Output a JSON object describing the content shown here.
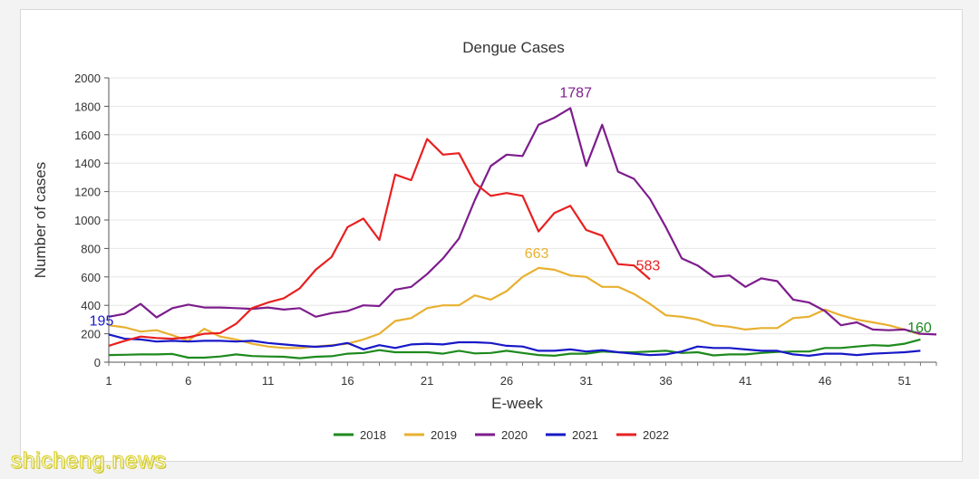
{
  "chart_data": {
    "type": "line",
    "title": "Dengue Cases",
    "xlabel": "E-week",
    "ylabel": "Number of cases",
    "ylim": [
      0,
      2000
    ],
    "xlim": [
      1,
      53
    ],
    "yticks": [
      0,
      200,
      400,
      600,
      800,
      1000,
      1200,
      1400,
      1600,
      1800,
      2000
    ],
    "xticks": [
      1,
      6,
      11,
      16,
      21,
      26,
      31,
      36,
      41,
      46,
      51
    ],
    "grid": "horizontal",
    "legend_position": "bottom",
    "series": [
      {
        "name": "2018",
        "color": "#1e8a1e",
        "x": [
          1,
          2,
          3,
          4,
          5,
          6,
          7,
          8,
          9,
          10,
          11,
          12,
          13,
          14,
          15,
          16,
          17,
          18,
          19,
          20,
          21,
          22,
          23,
          24,
          25,
          26,
          27,
          28,
          29,
          30,
          31,
          32,
          33,
          34,
          35,
          36,
          37,
          38,
          39,
          40,
          41,
          42,
          43,
          44,
          45,
          46,
          47,
          48,
          49,
          50,
          51,
          52
        ],
        "values": [
          50,
          52,
          55,
          55,
          58,
          32,
          32,
          40,
          55,
          43,
          40,
          38,
          28,
          38,
          42,
          60,
          65,
          85,
          70,
          70,
          70,
          60,
          80,
          62,
          65,
          80,
          65,
          50,
          45,
          60,
          60,
          75,
          70,
          70,
          75,
          80,
          65,
          70,
          48,
          55,
          55,
          65,
          72,
          75,
          75,
          100,
          100,
          110,
          120,
          115,
          130,
          160
        ]
      },
      {
        "name": "2019",
        "color": "#e8b030",
        "x": [
          1,
          2,
          3,
          4,
          5,
          6,
          7,
          8,
          9,
          10,
          11,
          12,
          13,
          14,
          15,
          16,
          17,
          18,
          19,
          20,
          21,
          22,
          23,
          24,
          25,
          26,
          27,
          28,
          29,
          30,
          31,
          32,
          33,
          34,
          35,
          36,
          37,
          38,
          39,
          40,
          41,
          42,
          43,
          44,
          45,
          46,
          47,
          48,
          49,
          50,
          51,
          52
        ],
        "values": [
          260,
          245,
          215,
          225,
          190,
          150,
          235,
          180,
          160,
          130,
          110,
          100,
          100,
          110,
          120,
          130,
          160,
          200,
          290,
          310,
          380,
          400,
          400,
          470,
          440,
          500,
          600,
          663,
          650,
          610,
          600,
          530,
          530,
          480,
          410,
          330,
          320,
          300,
          260,
          250,
          230,
          240,
          240,
          310,
          320,
          370,
          330,
          300,
          280,
          260,
          230,
          195
        ]
      },
      {
        "name": "2020",
        "color": "#7d1d8c",
        "x": [
          1,
          2,
          3,
          4,
          5,
          6,
          7,
          8,
          9,
          10,
          11,
          12,
          13,
          14,
          15,
          16,
          17,
          18,
          19,
          20,
          21,
          22,
          23,
          24,
          25,
          26,
          27,
          28,
          29,
          30,
          31,
          32,
          33,
          34,
          35,
          36,
          37,
          38,
          39,
          40,
          41,
          42,
          43,
          44,
          45,
          46,
          47,
          48,
          49,
          50,
          51,
          52,
          53
        ],
        "values": [
          320,
          340,
          410,
          315,
          380,
          405,
          385,
          385,
          380,
          375,
          385,
          370,
          380,
          320,
          345,
          360,
          400,
          395,
          510,
          530,
          620,
          730,
          870,
          1140,
          1380,
          1460,
          1450,
          1670,
          1720,
          1787,
          1380,
          1670,
          1340,
          1290,
          1150,
          950,
          730,
          680,
          600,
          610,
          530,
          590,
          570,
          440,
          420,
          360,
          260,
          280,
          230,
          225,
          230,
          200,
          195
        ]
      },
      {
        "name": "2021",
        "color": "#1818c8",
        "x": [
          1,
          2,
          3,
          4,
          5,
          6,
          7,
          8,
          9,
          10,
          11,
          12,
          13,
          14,
          15,
          16,
          17,
          18,
          19,
          20,
          21,
          22,
          23,
          24,
          25,
          26,
          27,
          28,
          29,
          30,
          31,
          32,
          33,
          34,
          35,
          36,
          37,
          38,
          39,
          40,
          41,
          42,
          43,
          44,
          45,
          46,
          47,
          48,
          49,
          50,
          51,
          52
        ],
        "values": [
          195,
          165,
          160,
          145,
          150,
          145,
          150,
          150,
          145,
          150,
          135,
          125,
          115,
          108,
          115,
          135,
          90,
          120,
          100,
          125,
          130,
          125,
          140,
          140,
          135,
          115,
          110,
          80,
          80,
          90,
          75,
          85,
          70,
          60,
          50,
          55,
          75,
          110,
          100,
          100,
          90,
          80,
          80,
          55,
          45,
          60,
          60,
          50,
          60,
          65,
          70,
          80
        ]
      },
      {
        "name": "2022",
        "color": "#e82020",
        "x": [
          1,
          2,
          3,
          4,
          5,
          6,
          7,
          8,
          9,
          10,
          11,
          12,
          13,
          14,
          15,
          16,
          17,
          18,
          19,
          20,
          21,
          22,
          23,
          24,
          25,
          26,
          27,
          28,
          29,
          30,
          31,
          32,
          33,
          34,
          35
        ],
        "values": [
          115,
          150,
          180,
          170,
          165,
          175,
          200,
          205,
          270,
          380,
          420,
          450,
          520,
          650,
          740,
          950,
          1010,
          860,
          1320,
          1280,
          1570,
          1460,
          1470,
          1260,
          1170,
          1190,
          1170,
          920,
          1050,
          1100,
          930,
          890,
          690,
          680,
          583
        ]
      }
    ],
    "annotations": [
      {
        "text": "195",
        "series": "2021",
        "x": 1,
        "y": 195
      },
      {
        "text": "663",
        "series": "2019",
        "x": 28,
        "y": 663
      },
      {
        "text": "1787",
        "series": "2020",
        "x": 30,
        "y": 1787
      },
      {
        "text": "583",
        "series": "2022",
        "x": 35,
        "y": 583
      },
      {
        "text": "160",
        "series": "2018",
        "x": 52,
        "y": 160
      }
    ]
  },
  "watermark": "shicheng.news"
}
